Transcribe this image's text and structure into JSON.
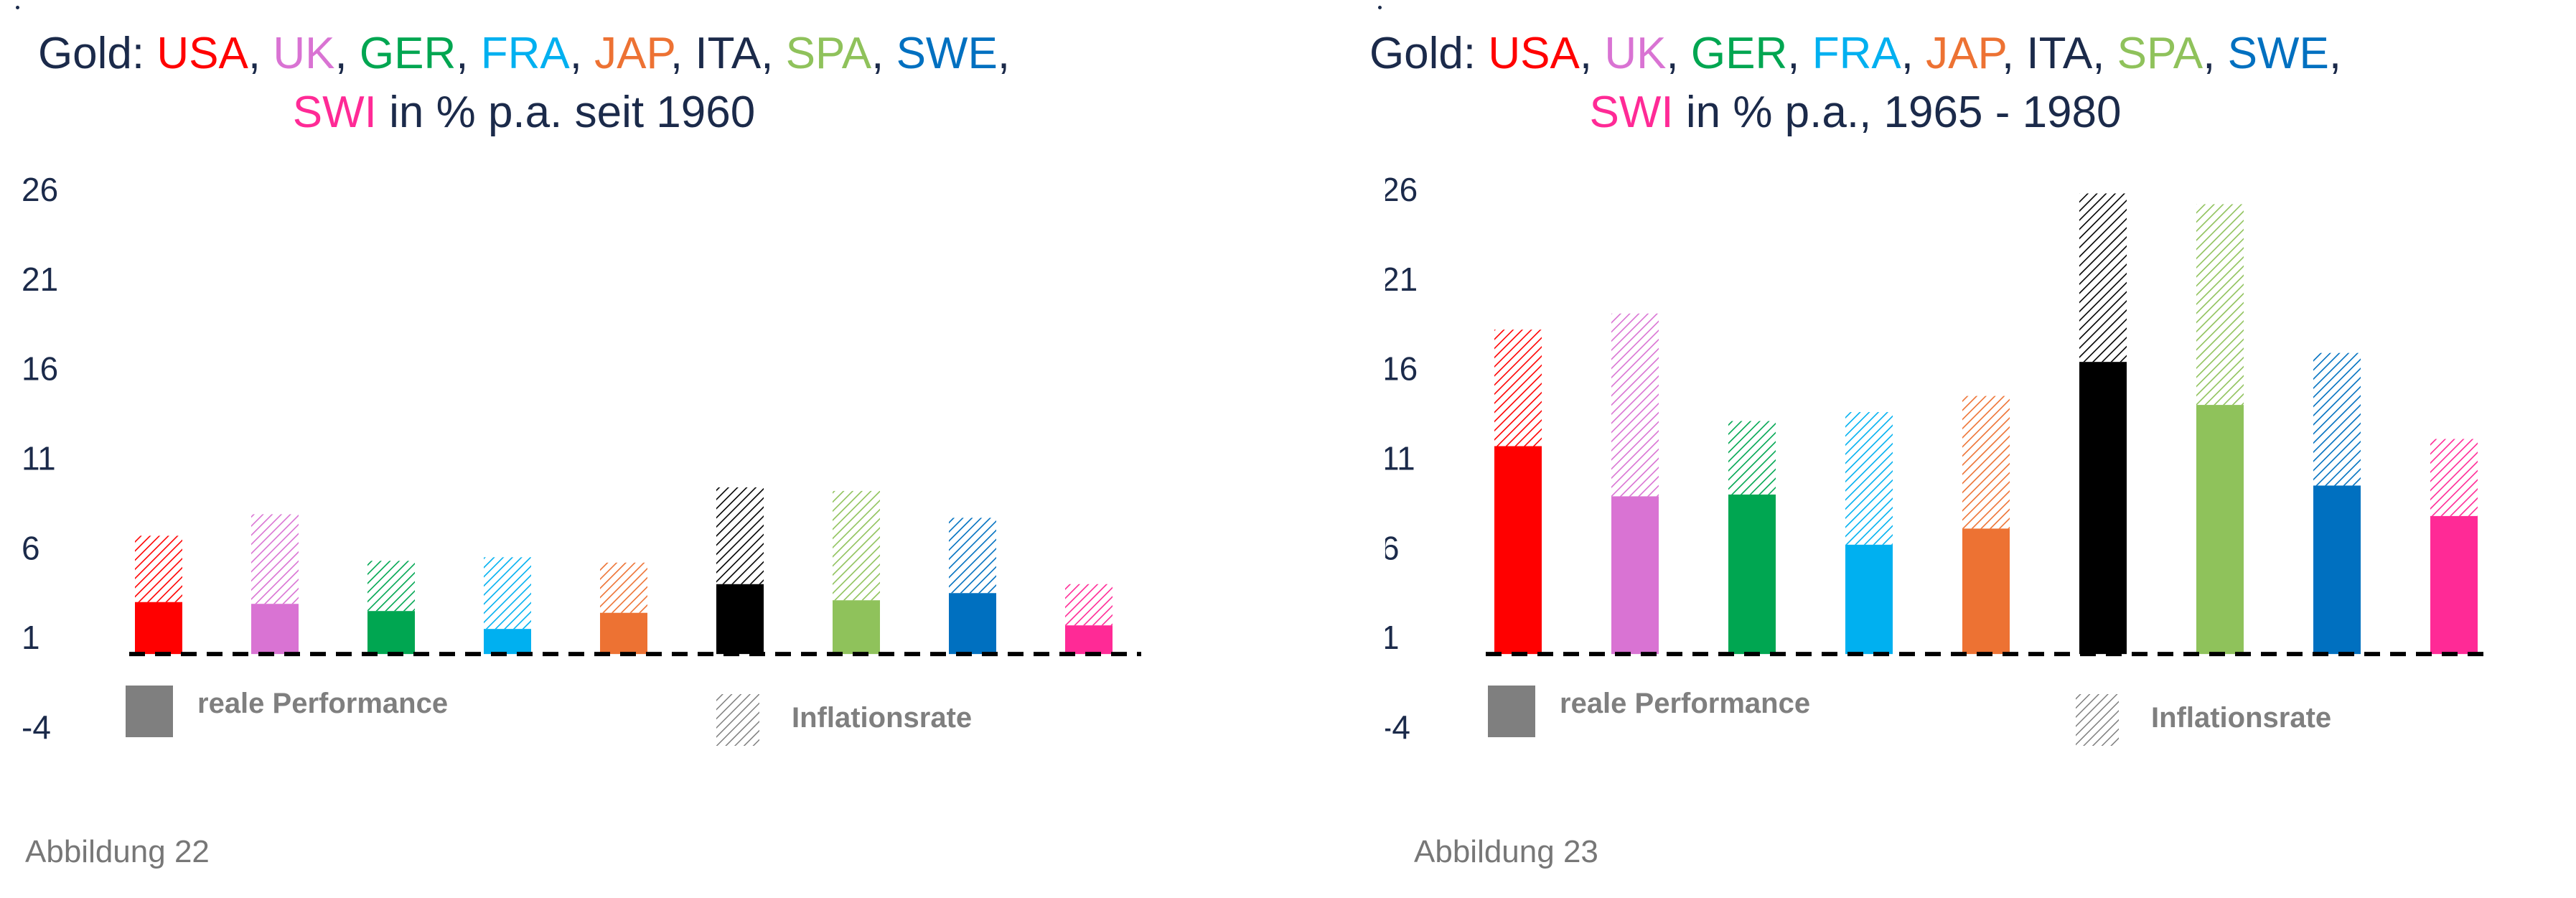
{
  "colors": {
    "text": "#1b2a4a",
    "usa": "#ff0000",
    "uk": "#d973d3",
    "ger": "#00a651",
    "fra": "#00b0f0",
    "jap": "#ed7233",
    "ita": "#000000",
    "spa": "#8fc25b",
    "swe": "#0070c0",
    "swi": "#ff2a96",
    "legend_real": "#7f7f7f",
    "caption": "#777777"
  },
  "chart_data": [
    {
      "type": "bar",
      "stacked": true,
      "title_prefix": "Gold:",
      "title_suffix": "in % p.a. seit 1960",
      "categories": [
        "USA",
        "UK",
        "GER",
        "FRA",
        "JAP",
        "ITA",
        "SPA",
        "SWE",
        "SWI"
      ],
      "series": [
        {
          "name": "reale Performance",
          "pattern": "solid",
          "values": [
            2.9,
            2.8,
            2.4,
            1.4,
            2.3,
            3.9,
            3.0,
            3.4,
            1.6
          ]
        },
        {
          "name": "Inflationsrate",
          "pattern": "hatched",
          "values": [
            3.7,
            5.0,
            2.8,
            4.0,
            2.8,
            5.4,
            6.1,
            4.2,
            2.3
          ]
        }
      ],
      "yticks": [
        26,
        21,
        16,
        11,
        6,
        1,
        -4
      ],
      "ylim": [
        -4,
        26
      ],
      "baseline": 0,
      "legend": [
        "reale Performance",
        "Inflationsrate"
      ],
      "caption": "Abbildung 22"
    },
    {
      "type": "bar",
      "stacked": true,
      "title_prefix": "Gold:",
      "title_suffix": "in % p.a., 1965 - 1980",
      "categories": [
        "USA",
        "UK",
        "GER",
        "FRA",
        "JAP",
        "ITA",
        "SPA",
        "SWE",
        "SWI"
      ],
      "series": [
        {
          "name": "reale Performance",
          "pattern": "solid",
          "values": [
            11.6,
            8.8,
            8.9,
            6.1,
            7.0,
            16.3,
            13.9,
            9.4,
            7.7
          ]
        },
        {
          "name": "Inflationsrate",
          "pattern": "hatched",
          "values": [
            6.5,
            10.2,
            4.1,
            7.4,
            7.4,
            9.4,
            11.2,
            7.4,
            4.3
          ]
        }
      ],
      "yticks": [
        26,
        21,
        16,
        11,
        6,
        1,
        -4
      ],
      "ylim": [
        -4,
        26
      ],
      "baseline": 0,
      "legend": [
        "reale Performance",
        "Inflationsrate"
      ],
      "caption": "Abbildung 23"
    }
  ]
}
